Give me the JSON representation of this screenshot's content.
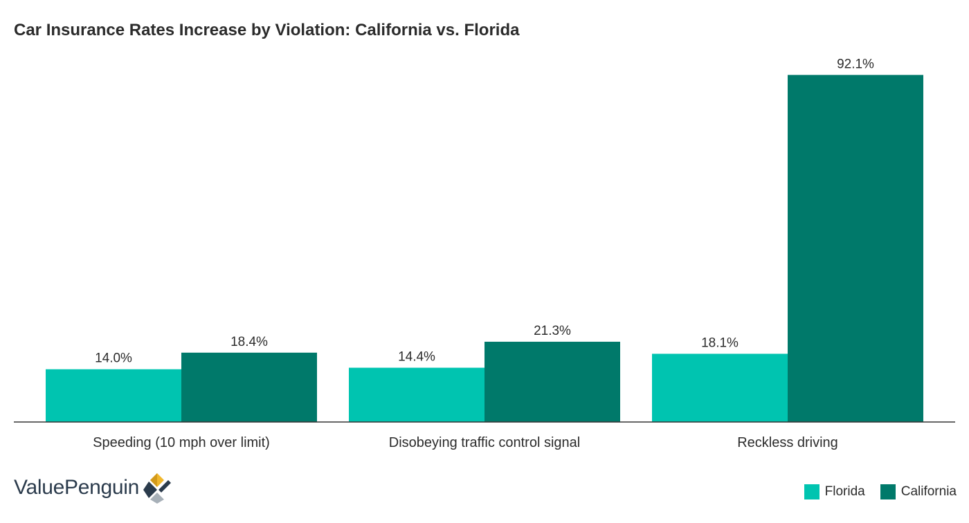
{
  "chart_data": {
    "type": "bar",
    "title": "Car Insurance Rates Increase by Violation: California vs. Florida",
    "categories": [
      "Speeding (10 mph over limit)",
      "Disobeying traffic control signal",
      "Reckless driving"
    ],
    "series": [
      {
        "name": "Florida",
        "values": [
          14.0,
          14.4,
          18.1
        ],
        "labels": [
          "14.0%",
          "14.4%",
          "18.1%"
        ],
        "color": "#00c4b0"
      },
      {
        "name": "California",
        "values": [
          18.4,
          21.3,
          92.1
        ],
        "labels": [
          "18.4%",
          "21.3%",
          "92.1%"
        ],
        "color": "#00796a"
      }
    ],
    "ylim": [
      0,
      100
    ],
    "grid": false,
    "legend_position": "bottom-right"
  },
  "branding": {
    "name": "ValuePenguin",
    "logo_icon": "valuepenguin-logo-icon",
    "logo_colors": [
      "#f1b82d",
      "#2b3b4c",
      "#a7b0b8"
    ]
  },
  "colors": {
    "baseline": "#333333"
  }
}
